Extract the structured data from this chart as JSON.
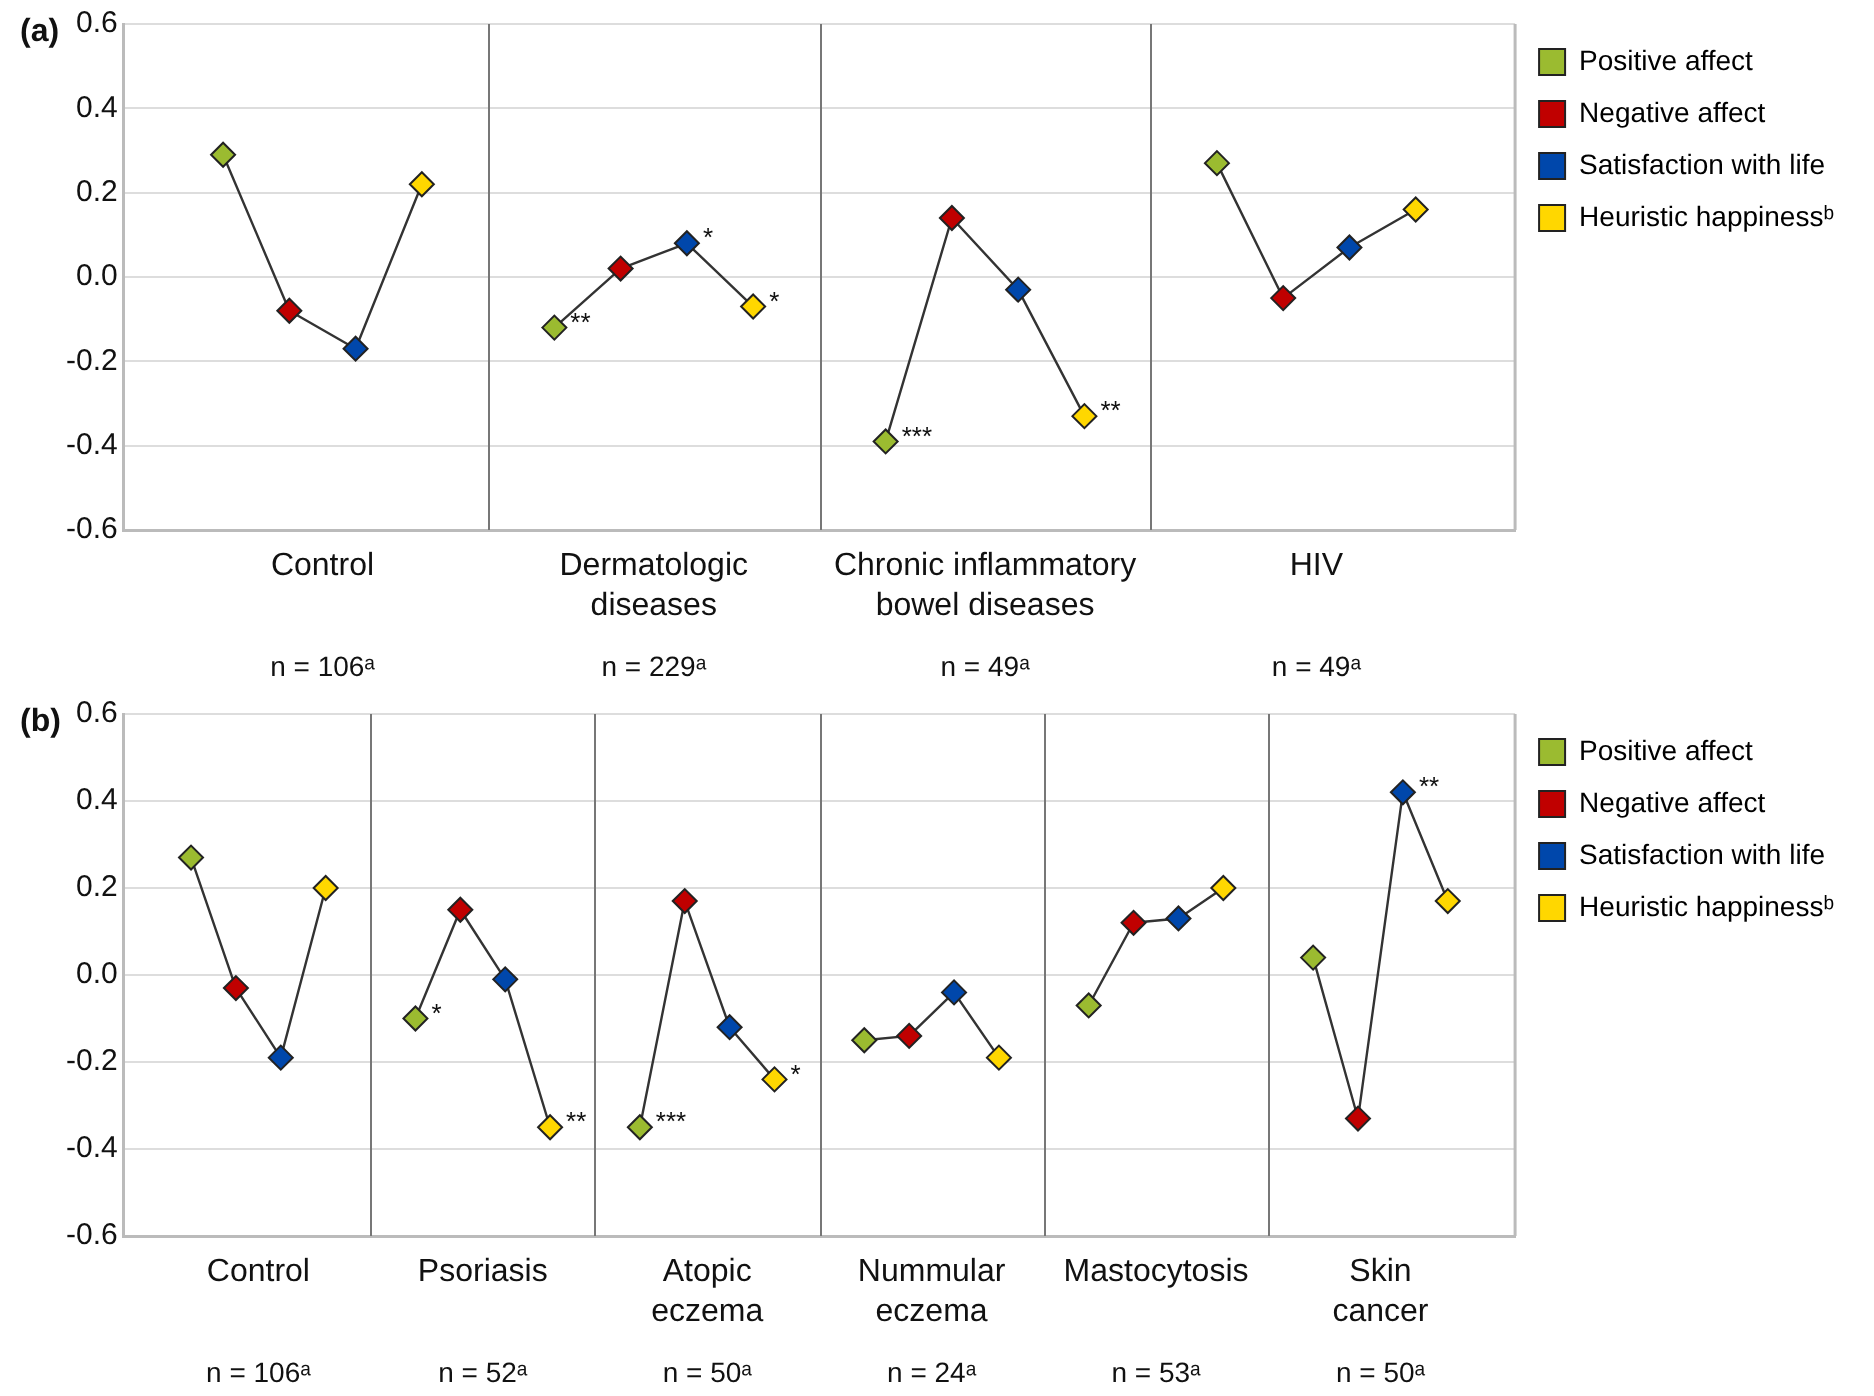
{
  "chart_data": [
    {
      "type": "line",
      "title": "(a)",
      "categories": [
        null,
        null,
        null,
        null,
        null,
        null,
        null,
        null,
        null,
        null,
        null,
        null,
        null,
        null,
        null,
        null,
        null,
        null,
        null,
        null,
        null
      ],
      "series": [
        {
          "color": "#333333",
          "marker": "none",
          "values": [
            null,
            0.29,
            -0.08,
            -0.17,
            0.22,
            null,
            -0.12,
            0.02,
            0.08,
            -0.07,
            null,
            -0.39,
            0.14,
            -0.03,
            -0.33,
            null,
            0.27,
            -0.05,
            0.07,
            0.16,
            null
          ]
        },
        {
          "type": "scatter",
          "name": "Positive affect",
          "color": "#9bbb30",
          "values": [
            null,
            0.29,
            null,
            null,
            null,
            null,
            -0.12,
            null,
            null,
            null,
            null,
            -0.39,
            null,
            null,
            null,
            null,
            0.27,
            null,
            null,
            null,
            null
          ],
          "value_labels": [
            null,
            null,
            null,
            null,
            null,
            null,
            "**",
            null,
            null,
            null,
            null,
            "***",
            null,
            null,
            null,
            null,
            null,
            null,
            null,
            null,
            null
          ]
        },
        {
          "type": "scatter",
          "name": "Negative affect",
          "color": "#c00000",
          "values": [
            null,
            null,
            -0.08,
            null,
            null,
            null,
            null,
            0.02,
            null,
            null,
            null,
            null,
            0.14,
            null,
            null,
            null,
            null,
            -0.05,
            null,
            null,
            null
          ]
        },
        {
          "type": "scatter",
          "name": "Satisfaction with life",
          "color": "#0047ab",
          "values": [
            null,
            null,
            null,
            -0.17,
            null,
            null,
            null,
            null,
            0.08,
            null,
            null,
            null,
            null,
            -0.03,
            null,
            null,
            null,
            null,
            0.07,
            null,
            null
          ],
          "value_labels": [
            null,
            null,
            null,
            null,
            null,
            null,
            null,
            null,
            "*",
            null,
            null,
            null,
            null,
            null,
            null,
            null,
            null,
            null,
            null,
            null,
            null
          ]
        },
        {
          "type": "scatter",
          "name": "Heuristic happinessᵇ",
          "color": "#ffd700",
          "values": [
            null,
            null,
            null,
            null,
            0.22,
            null,
            null,
            null,
            null,
            -0.07,
            null,
            null,
            null,
            null,
            -0.33,
            null,
            null,
            null,
            null,
            0.16,
            null
          ],
          "value_labels": [
            null,
            null,
            null,
            null,
            null,
            null,
            null,
            null,
            null,
            "*",
            null,
            null,
            null,
            null,
            "**",
            null,
            null,
            null,
            null,
            null,
            null
          ]
        }
      ],
      "ylim": [
        -0.6,
        0.6
      ],
      "yticks": [
        {
          "value": -0.6,
          "label": "-0.6"
        },
        {
          "value": -0.4,
          "label": "-0.4"
        },
        {
          "value": -0.2,
          "label": "-0.2"
        },
        {
          "value": 0,
          "label": "0.0"
        },
        0.2,
        0.4,
        0.6
      ],
      "grid": true,
      "legend": "top right",
      "marker": "diamond",
      "line_style": "solid",
      "annotations": [
        "Control",
        "Dermatologic\ndiseases",
        "Chronic inflammatory\nbowel diseases",
        "HIV",
        "n = 106ᵃ",
        "n = 229ᵃ",
        "n = 49ᵃ",
        "n = 49ᵃ"
      ]
    },
    {
      "type": "line",
      "title": "(b)",
      "categories": [
        null,
        null,
        null,
        null,
        null,
        null,
        null,
        null,
        null,
        null,
        null,
        null,
        null,
        null,
        null,
        null,
        null,
        null,
        null,
        null,
        null,
        null,
        null,
        null,
        null,
        null,
        null,
        null,
        null,
        null,
        null
      ],
      "series": [
        {
          "color": "#333333",
          "marker": "none",
          "values": [
            null,
            0.27,
            -0.03,
            -0.19,
            0.2,
            null,
            -0.1,
            0.15,
            -0.01,
            -0.35,
            null,
            -0.35,
            0.17,
            -0.12,
            -0.24,
            null,
            -0.15,
            -0.14,
            -0.04,
            -0.19,
            null,
            -0.07,
            0.12,
            0.13,
            0.2,
            null,
            0.04,
            -0.33,
            0.42,
            0.17,
            null
          ]
        },
        {
          "type": "scatter",
          "name": "Positive affect",
          "color": "#9bbb30",
          "values": [
            null,
            0.27,
            null,
            null,
            null,
            null,
            -0.1,
            null,
            null,
            null,
            null,
            -0.35,
            null,
            null,
            null,
            null,
            -0.15,
            null,
            null,
            null,
            null,
            -0.07,
            null,
            null,
            null,
            null,
            0.04,
            null,
            null,
            null,
            null
          ],
          "value_labels": [
            null,
            null,
            null,
            null,
            null,
            null,
            "*",
            null,
            null,
            null,
            null,
            "***",
            null,
            null,
            null,
            null,
            null,
            null,
            null,
            null,
            null,
            null,
            null,
            null,
            null,
            null,
            null,
            null,
            null,
            null,
            null
          ]
        },
        {
          "type": "scatter",
          "name": "Negative affect",
          "color": "#c00000",
          "values": [
            null,
            null,
            -0.03,
            null,
            null,
            null,
            null,
            0.15,
            null,
            null,
            null,
            null,
            0.17,
            null,
            null,
            null,
            null,
            -0.14,
            null,
            null,
            null,
            null,
            0.12,
            null,
            null,
            null,
            null,
            -0.33,
            null,
            null,
            null
          ]
        },
        {
          "type": "scatter",
          "name": "Satisfaction with life",
          "color": "#0047ab",
          "values": [
            null,
            null,
            null,
            -0.19,
            null,
            null,
            null,
            null,
            -0.01,
            null,
            null,
            null,
            null,
            -0.12,
            null,
            null,
            null,
            null,
            -0.04,
            null,
            null,
            null,
            null,
            0.13,
            null,
            null,
            null,
            null,
            0.42,
            null,
            null
          ],
          "value_labels": [
            null,
            null,
            null,
            null,
            null,
            null,
            null,
            null,
            null,
            null,
            null,
            null,
            null,
            null,
            null,
            null,
            null,
            null,
            null,
            null,
            null,
            null,
            null,
            null,
            null,
            null,
            null,
            null,
            "**",
            null,
            null
          ]
        },
        {
          "type": "scatter",
          "name": "Heuristic happinessᵇ",
          "color": "#ffd700",
          "values": [
            null,
            null,
            null,
            null,
            0.2,
            null,
            null,
            null,
            null,
            -0.35,
            null,
            null,
            null,
            null,
            -0.24,
            null,
            null,
            null,
            null,
            -0.19,
            null,
            null,
            null,
            null,
            0.2,
            null,
            null,
            null,
            null,
            0.17,
            null
          ],
          "value_labels": [
            null,
            null,
            null,
            null,
            null,
            null,
            null,
            null,
            null,
            "**",
            null,
            null,
            null,
            null,
            "*",
            null,
            null,
            null,
            null,
            null,
            null,
            null,
            null,
            null,
            null,
            null,
            null,
            null,
            null,
            null,
            null
          ]
        }
      ],
      "ylim": [
        -0.6,
        0.6
      ],
      "yticks": [
        {
          "value": -0.6,
          "label": "-0.6"
        },
        {
          "value": -0.4,
          "label": "-0.4"
        },
        {
          "value": -0.2,
          "label": "-0.2"
        },
        {
          "value": 0,
          "label": "0.0"
        },
        0.2,
        0.4,
        0.6
      ],
      "grid": true,
      "legend": "top right",
      "marker": "diamond",
      "line_style": "solid",
      "annotations": [
        "Control",
        "Psoriasis",
        "Atopic\neczema",
        "Nummular\neczema",
        "Mastocytosis",
        "Skin\ncancer",
        "n = 106ᵃ",
        "n = 52ᵃ",
        "n = 50ᵃ",
        "n = 24ᵃ",
        "n = 53ᵃ",
        "n = 50ᵃ"
      ]
    }
  ]
}
